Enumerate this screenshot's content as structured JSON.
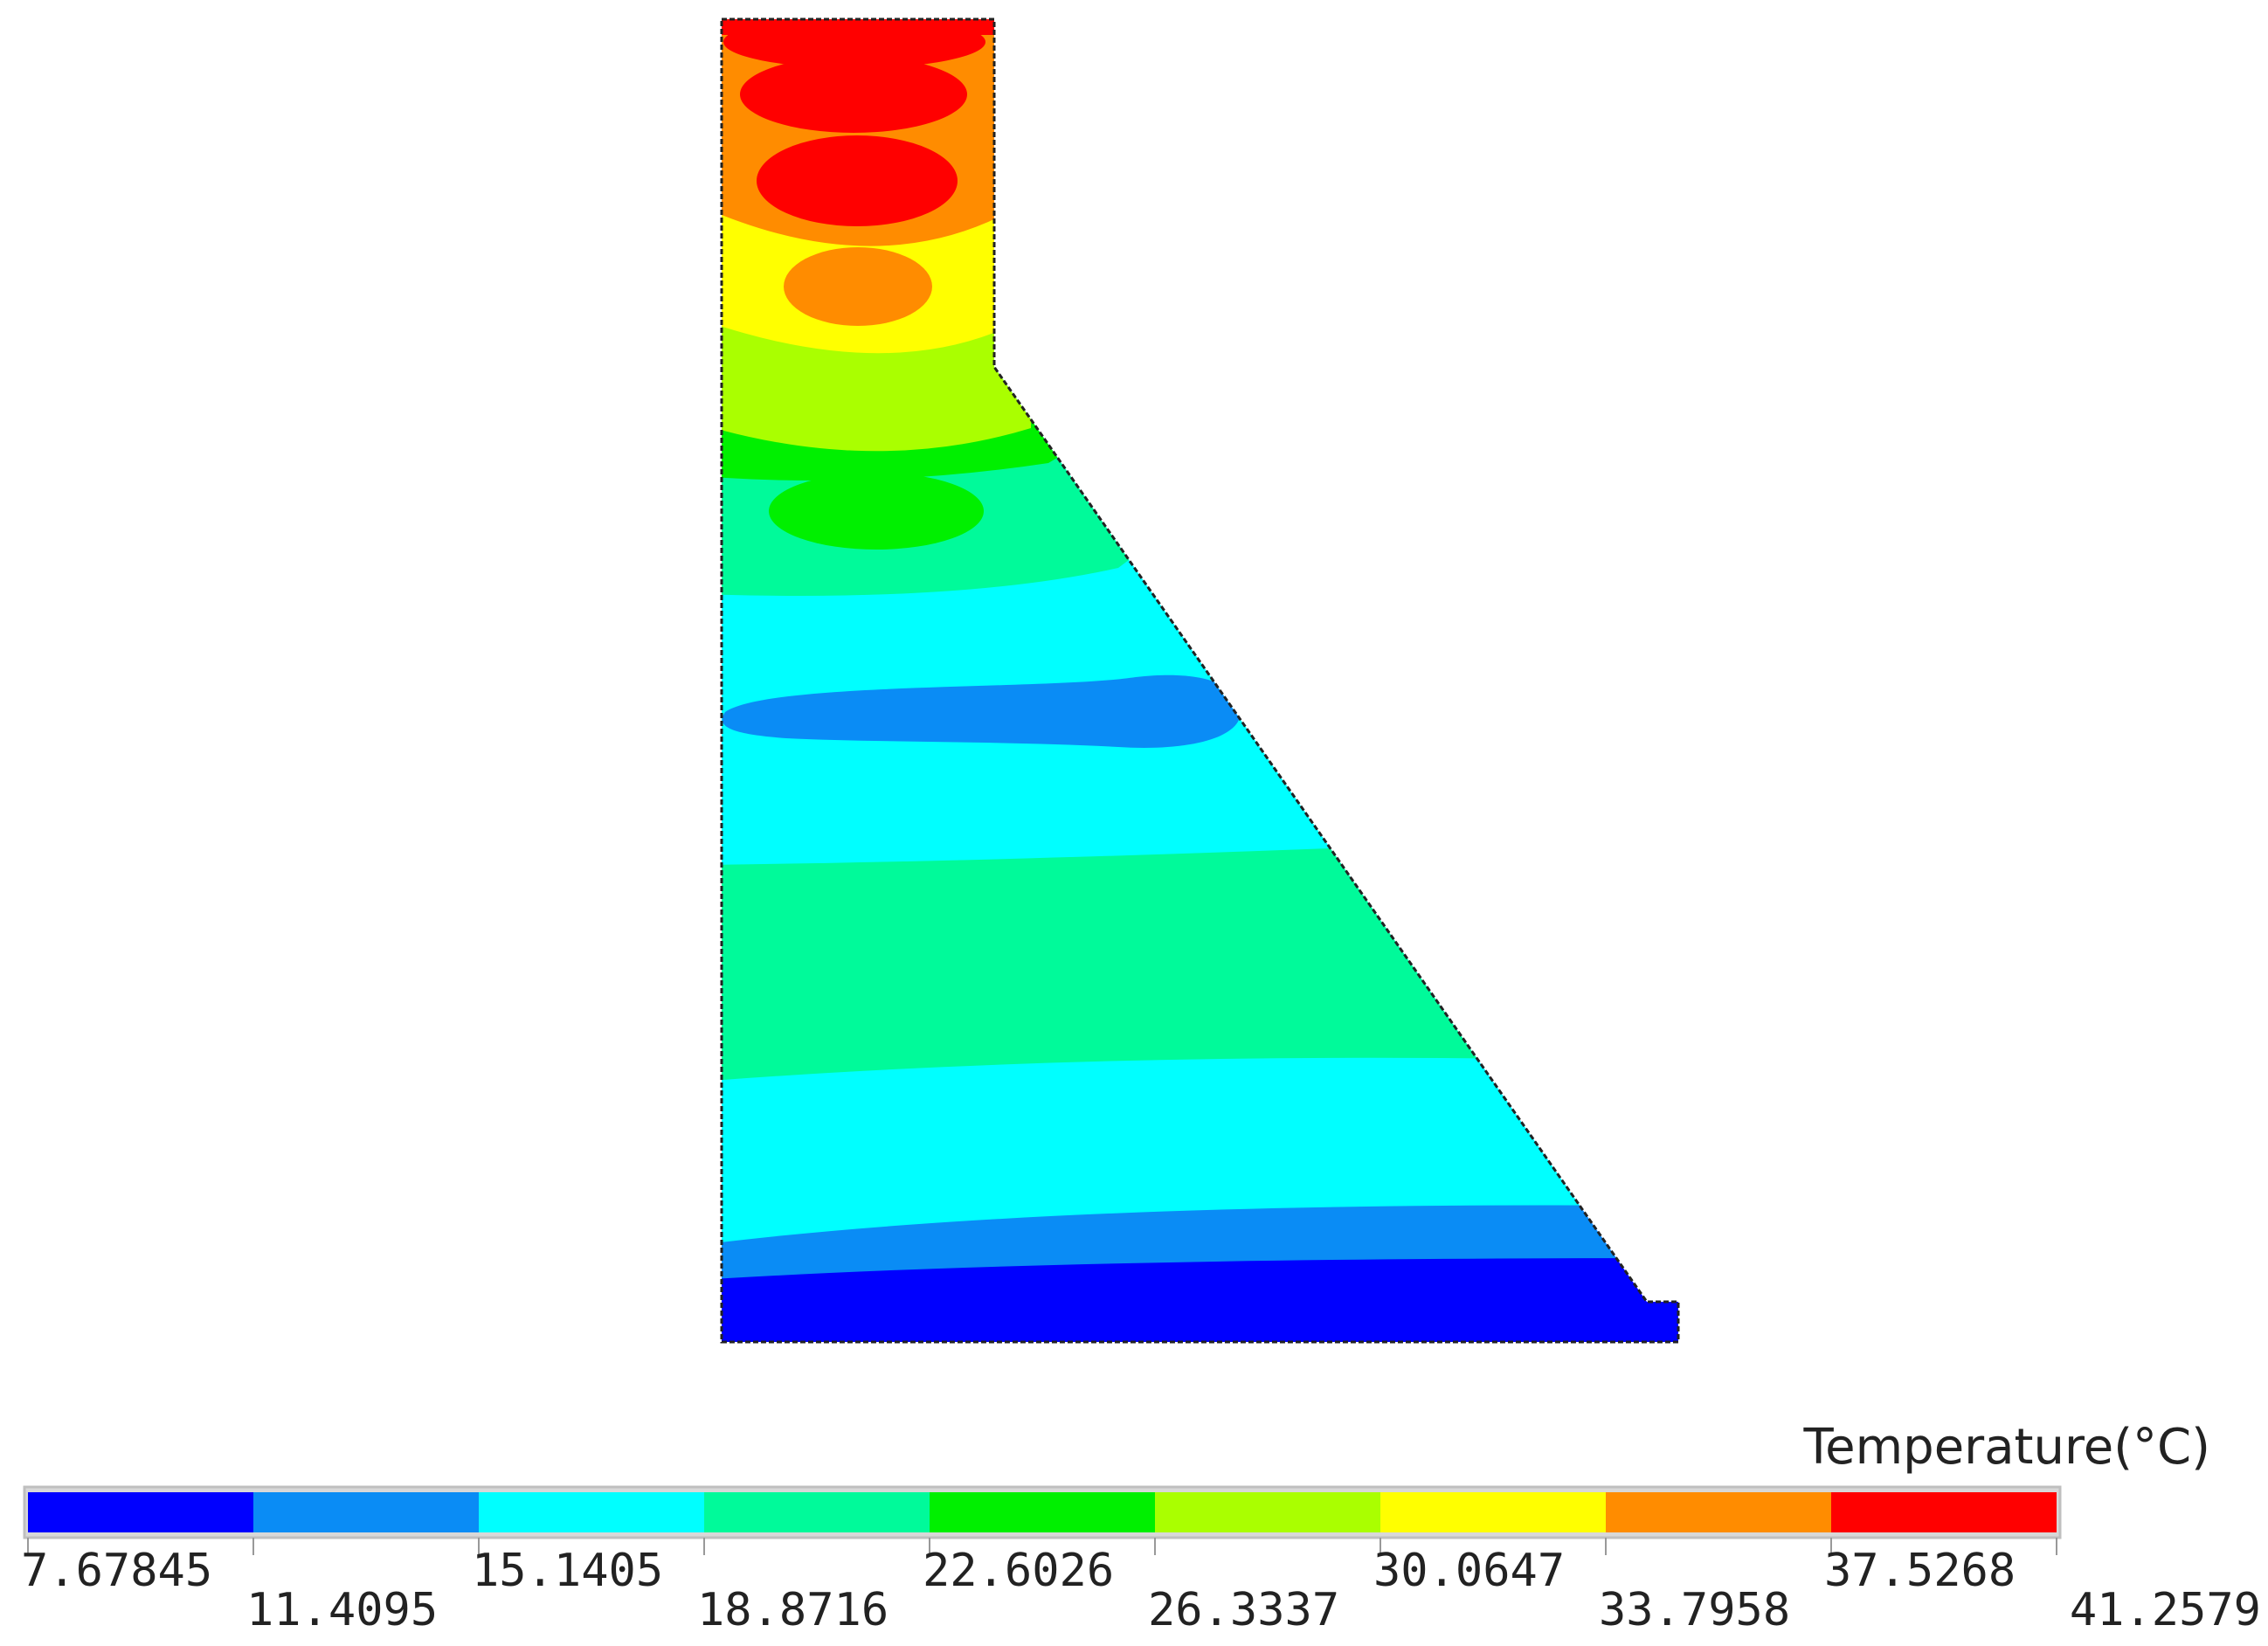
{
  "legend": {
    "title": "Temperature(°C)",
    "ticks": [
      "7.67845",
      "11.4095",
      "15.1405",
      "18.8716",
      "22.6026",
      "26.3337",
      "30.0647",
      "33.7958",
      "37.5268",
      "41.2579"
    ],
    "band_colors": [
      "#0000FF",
      "#0A8CF5",
      "#00FFFF",
      "#00FA9A",
      "#00F000",
      "#AAFF00",
      "#FFFF00",
      "#FF8C00",
      "#FF0000"
    ]
  },
  "contour_plot": {
    "description_colors": {
      "outline": "#222222",
      "background": "#ffffff"
    }
  }
}
